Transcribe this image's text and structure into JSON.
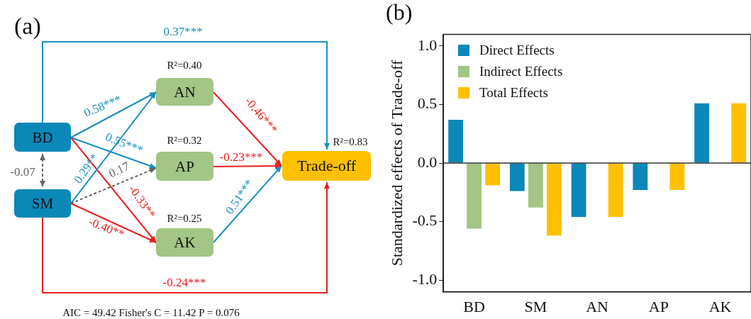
{
  "chart_data": [
    {
      "type": "other",
      "title": "(a)",
      "categories": [
        "BD",
        "SM",
        "AN",
        "AP",
        "AK",
        "Trade-off"
      ],
      "colors": [
        "#0a88b8",
        "#0a88b8",
        "#a3c585",
        "#a3c585",
        "#a3c585",
        "#ffc000"
      ],
      "annotations": [
        "0.37***",
        "R²=0.40",
        "R²=0.32",
        "R²=0.25",
        "R²=0.83",
        "0.58***",
        "0.55***",
        "0.29**",
        "0.17",
        "-0.07",
        "-0.33**",
        "-0.40**",
        "-0.46***",
        "-0.23***",
        "0.51***",
        "-0.24***",
        "AIC = 49.42    Fisher's C = 11.42   P = 0.076"
      ]
    },
    {
      "type": "bar",
      "title": "(b)",
      "ylabel": "Standardized effects of Trade-off",
      "categories": [
        "BD",
        "SM",
        "AN",
        "AP",
        "AK"
      ],
      "series": [
        {
          "name": "Direct Effects",
          "color": "#0a88b8",
          "values": [
            0.37,
            -0.24,
            -0.46,
            -0.23,
            0.51
          ]
        },
        {
          "name": "Indirect Effects",
          "color": "#a3c585",
          "values": [
            -0.56,
            -0.38,
            null,
            null,
            null
          ]
        },
        {
          "name": "Total Effects",
          "color": "#ffc000",
          "values": [
            -0.19,
            -0.62,
            -0.46,
            -0.23,
            0.51
          ]
        }
      ],
      "ylim": [
        -1.1,
        1.1
      ],
      "yticks": [
        {
          "value": -1,
          "label": "-1.0"
        },
        -0.5,
        {
          "value": 0,
          "label": "0.0"
        },
        0.5,
        {
          "value": 1,
          "label": "1.0"
        }
      ],
      "ref_lines": [
        {
          "axis": "y",
          "value": 0,
          "color": "#333333"
        }
      ],
      "legend": "top left",
      "grid": false
    }
  ]
}
